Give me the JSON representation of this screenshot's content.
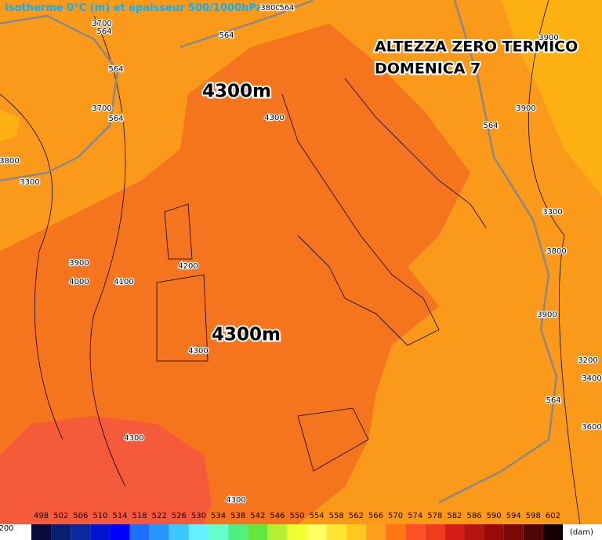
{
  "header": {
    "title": "Isotherme 0°C (m) et épaisseur 500/1000hPa"
  },
  "overlay": {
    "line1": "ALTEZZA ZERO TERMICO",
    "line2": "DOMENICA 7"
  },
  "big_labels": [
    "4300m",
    "4300m"
  ],
  "contour_labels": [
    "3700",
    "564",
    "564",
    "564",
    "3700",
    "564",
    "4300",
    "3900",
    "564",
    "3800",
    "3300",
    "3900",
    "4000",
    "4100",
    "4200",
    "4300",
    "4300",
    "4300",
    "3300",
    "3800",
    "3900",
    "3200",
    "3400",
    "564",
    "3600",
    "3900",
    "3800",
    "564",
    "200"
  ],
  "colorbar": {
    "ticks": [
      498,
      502,
      506,
      510,
      514,
      518,
      522,
      526,
      530,
      534,
      538,
      542,
      546,
      550,
      554,
      558,
      562,
      566,
      570,
      574,
      578,
      582,
      586,
      590,
      594,
      598,
      602
    ],
    "colors": [
      "#0a0a3c",
      "#0a1e6e",
      "#0a28a0",
      "#0014d2",
      "#0000ff",
      "#1e6eff",
      "#2896ff",
      "#3cc8ff",
      "#64f0ff",
      "#64ffc8",
      "#50f080",
      "#64e63c",
      "#b4f032",
      "#f0ff32",
      "#ffff64",
      "#ffe632",
      "#ffc81e",
      "#ffa01e",
      "#ff7814",
      "#ff5028",
      "#f03c1e",
      "#d21e14",
      "#b41414",
      "#960a0a",
      "#780a0a",
      "#500505",
      "#140000"
    ],
    "unit": "(dam)"
  }
}
